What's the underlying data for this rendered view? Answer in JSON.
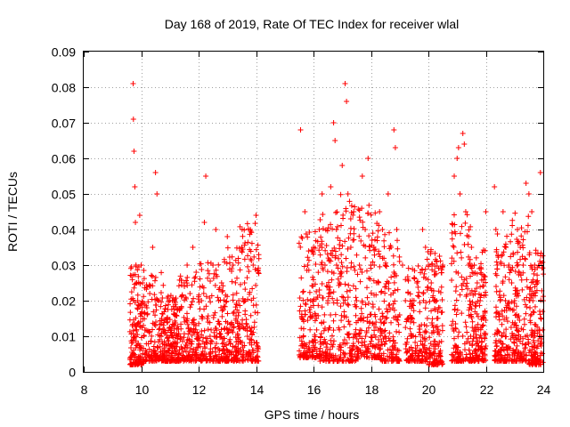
{
  "chart_data": {
    "type": "scatter",
    "title": "Day 168 of 2019, Rate Of TEC Index for receiver wlal",
    "xlabel": "GPS time / hours",
    "ylabel": "ROTI / TECUs",
    "xlim": [
      8,
      24
    ],
    "ylim": [
      0,
      0.09
    ],
    "xticks": [
      "8",
      "10",
      "12",
      "14",
      "16",
      "18",
      "20",
      "22",
      "24"
    ],
    "yticks": [
      "0",
      "0.01",
      "0.02",
      "0.03",
      "0.04",
      "0.05",
      "0.06",
      "0.07",
      "0.08",
      "0.09"
    ],
    "grid": true,
    "marker": "+",
    "color": "#ff0000",
    "series": [
      {
        "name": "ROTI",
        "x": [
          9.72,
          9.73,
          9.75,
          9.78,
          9.8,
          9.82,
          9.85,
          9.88,
          9.9,
          9.95,
          10.0,
          10.05,
          10.1,
          10.15,
          10.2,
          10.3,
          10.4,
          10.5,
          10.55,
          10.6,
          10.7,
          10.8,
          10.9,
          11.0,
          11.1,
          11.2,
          11.3,
          11.4,
          11.5,
          11.6,
          11.7,
          11.8,
          11.9,
          12.1,
          12.2,
          12.25,
          12.3,
          12.4,
          12.5,
          12.6,
          12.7,
          12.8,
          12.9,
          13.0,
          13.1,
          13.2,
          13.3,
          13.4,
          13.5,
          13.6,
          13.7,
          13.8,
          13.9,
          14.0,
          15.55,
          15.7,
          15.8,
          15.9,
          16.0,
          16.1,
          16.2,
          16.3,
          16.4,
          16.5,
          16.6,
          16.7,
          16.75,
          16.8,
          16.9,
          17.0,
          17.1,
          17.15,
          17.2,
          17.3,
          17.4,
          17.5,
          17.6,
          17.7,
          17.8,
          17.9,
          18.0,
          18.1,
          18.2,
          18.3,
          18.4,
          18.5,
          18.6,
          18.7,
          18.8,
          18.85,
          18.9,
          19.1,
          19.2,
          19.3,
          19.4,
          19.5,
          19.6,
          19.7,
          19.8,
          19.9,
          20.0,
          20.1,
          20.2,
          20.3,
          20.4,
          20.5,
          20.9,
          21.0,
          21.05,
          21.1,
          21.2,
          21.25,
          21.3,
          21.4,
          21.5,
          21.6,
          21.7,
          21.8,
          21.9,
          22.0,
          22.3,
          22.35,
          22.4,
          22.5,
          22.6,
          22.7,
          22.8,
          22.9,
          23.0,
          23.1,
          23.2,
          23.3,
          23.4,
          23.5,
          23.6,
          23.7,
          23.8,
          23.9,
          24.0
        ],
        "y": [
          0.081,
          0.071,
          0.062,
          0.052,
          0.042,
          0.03,
          0.025,
          0.02,
          0.008,
          0.044,
          0.03,
          0.025,
          0.01,
          0.006,
          0.018,
          0.022,
          0.035,
          0.056,
          0.05,
          0.02,
          0.01,
          0.012,
          0.015,
          0.02,
          0.008,
          0.006,
          0.012,
          0.018,
          0.025,
          0.03,
          0.022,
          0.035,
          0.006,
          0.02,
          0.042,
          0.055,
          0.015,
          0.01,
          0.03,
          0.04,
          0.02,
          0.025,
          0.012,
          0.038,
          0.008,
          0.03,
          0.015,
          0.02,
          0.035,
          0.025,
          0.01,
          0.04,
          0.03,
          0.044,
          0.068,
          0.045,
          0.03,
          0.02,
          0.035,
          0.015,
          0.04,
          0.05,
          0.03,
          0.02,
          0.052,
          0.07,
          0.065,
          0.04,
          0.025,
          0.058,
          0.081,
          0.076,
          0.05,
          0.035,
          0.045,
          0.02,
          0.03,
          0.055,
          0.04,
          0.06,
          0.03,
          0.035,
          0.025,
          0.045,
          0.04,
          0.03,
          0.05,
          0.035,
          0.068,
          0.063,
          0.04,
          0.03,
          0.02,
          0.015,
          0.01,
          0.02,
          0.025,
          0.012,
          0.04,
          0.035,
          0.03,
          0.025,
          0.02,
          0.015,
          0.018,
          0.03,
          0.055,
          0.06,
          0.063,
          0.05,
          0.067,
          0.064,
          0.045,
          0.03,
          0.035,
          0.03,
          0.025,
          0.02,
          0.015,
          0.045,
          0.052,
          0.04,
          0.03,
          0.02,
          0.045,
          0.035,
          0.03,
          0.025,
          0.02,
          0.04,
          0.035,
          0.03,
          0.053,
          0.05,
          0.045,
          0.03,
          0.025,
          0.056,
          0.02
        ],
        "bands": [
          [
            9.6,
            10.1,
            0.002,
            0.03
          ],
          [
            10.1,
            10.8,
            0.003,
            0.028
          ],
          [
            10.8,
            11.3,
            0.003,
            0.022
          ],
          [
            11.3,
            12.0,
            0.003,
            0.028
          ],
          [
            12.0,
            12.8,
            0.003,
            0.032
          ],
          [
            12.8,
            13.4,
            0.003,
            0.035
          ],
          [
            13.4,
            14.1,
            0.003,
            0.042
          ],
          [
            15.5,
            16.2,
            0.004,
            0.04
          ],
          [
            16.2,
            16.9,
            0.003,
            0.045
          ],
          [
            16.9,
            17.6,
            0.003,
            0.05
          ],
          [
            17.6,
            18.3,
            0.004,
            0.048
          ],
          [
            18.3,
            19.0,
            0.003,
            0.04
          ],
          [
            19.2,
            19.9,
            0.003,
            0.03
          ],
          [
            19.9,
            20.5,
            0.002,
            0.035
          ],
          [
            20.8,
            21.5,
            0.003,
            0.045
          ],
          [
            21.5,
            22.0,
            0.003,
            0.035
          ],
          [
            22.3,
            22.9,
            0.003,
            0.04
          ],
          [
            22.9,
            23.5,
            0.003,
            0.045
          ],
          [
            23.5,
            24.0,
            0.002,
            0.035
          ]
        ],
        "band_count": 150
      }
    ]
  }
}
